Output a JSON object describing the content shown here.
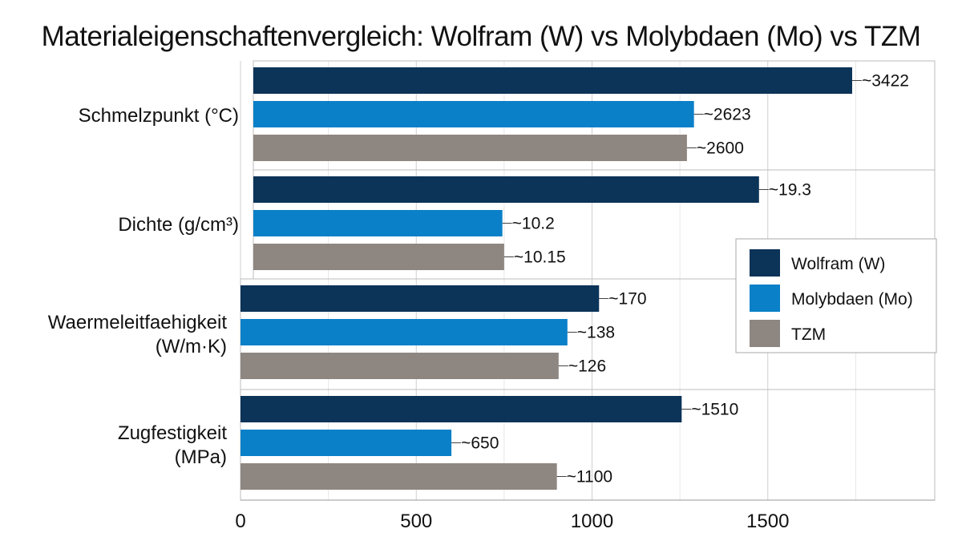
{
  "chart_data": {
    "type": "bar",
    "orientation": "horizontal",
    "title": "Materialeigenschaftenvergleich: Wolfram (W) vs Molybdaen (Mo) vs TZM",
    "categories": [
      [
        "Schmelzpunkt (°C)"
      ],
      [
        "Dichte (g/cm³)"
      ],
      [
        "Waermeleitfaehigkeit",
        "(W/m·K)"
      ],
      [
        "Zugfestigkeit",
        "(MPa)"
      ]
    ],
    "series": [
      {
        "name": "Wolfram (W)",
        "color": "#0c3358",
        "values": [
          1740,
          1475,
          1020,
          1255
        ],
        "labels": [
          "~3422",
          "~19.3",
          "~170",
          "~1510"
        ]
      },
      {
        "name": "Molybdaen (Mo)",
        "color": "#0a80c8",
        "values": [
          1290,
          745,
          930,
          600
        ],
        "labels": [
          "~2623",
          "~10.2",
          "~138",
          "~650"
        ]
      },
      {
        "name": "TZM",
        "color": "#8e8680",
        "values": [
          1270,
          750,
          905,
          900
        ],
        "labels": [
          "~2600",
          "~10.15",
          "~126",
          "~1100"
        ]
      }
    ],
    "xticks": [
      0,
      500,
      1000,
      1500
    ],
    "xlim": [
      0,
      1980
    ],
    "grid": true,
    "legend_position": "right"
  }
}
